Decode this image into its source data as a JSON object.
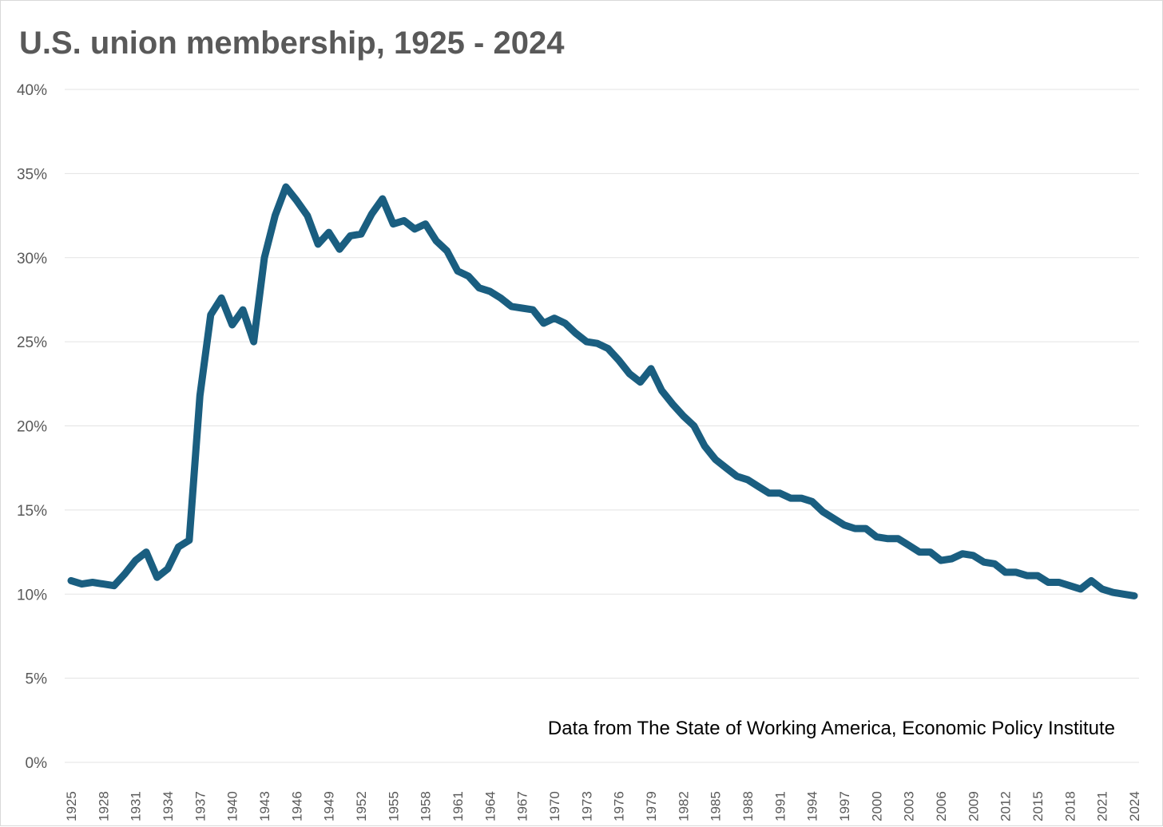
{
  "chart_data": {
    "type": "line",
    "title": "U.S. union membership, 1925 - 2024",
    "xlabel": "",
    "ylabel": "",
    "ylim": [
      0,
      40
    ],
    "ytick_step": 5,
    "ytick_suffix": "%",
    "grid": true,
    "legend": "none",
    "annotation": "Data from The State of Working America, Economic Policy Institute",
    "xtick_labels": [
      "1925",
      "1928",
      "1931",
      "1934",
      "1937",
      "1940",
      "1943",
      "1946",
      "1949",
      "1952",
      "1955",
      "1958",
      "1961",
      "1964",
      "1967",
      "1970",
      "1973",
      "1976",
      "1979",
      "1982",
      "1985",
      "1988",
      "1991",
      "1994",
      "1997",
      "2000",
      "2003",
      "2006",
      "2009",
      "2012",
      "2015",
      "2018",
      "2021",
      "2024"
    ],
    "x_start": 1925,
    "x_end": 2024,
    "colors": {
      "line": "#1a5e80",
      "grid": "#e3e3e3",
      "text": "#595959"
    },
    "series": [
      {
        "name": "Union membership",
        "x": [
          1925,
          1926,
          1927,
          1928,
          1929,
          1930,
          1931,
          1932,
          1933,
          1934,
          1935,
          1936,
          1937,
          1938,
          1939,
          1940,
          1941,
          1942,
          1943,
          1944,
          1945,
          1946,
          1947,
          1948,
          1949,
          1950,
          1951,
          1952,
          1953,
          1954,
          1955,
          1956,
          1957,
          1958,
          1959,
          1960,
          1961,
          1962,
          1963,
          1964,
          1965,
          1966,
          1967,
          1968,
          1969,
          1970,
          1971,
          1972,
          1973,
          1974,
          1975,
          1976,
          1977,
          1978,
          1979,
          1980,
          1981,
          1982,
          1983,
          1984,
          1985,
          1986,
          1987,
          1988,
          1989,
          1990,
          1991,
          1992,
          1993,
          1994,
          1995,
          1996,
          1997,
          1998,
          1999,
          2000,
          2001,
          2002,
          2003,
          2004,
          2005,
          2006,
          2007,
          2008,
          2009,
          2010,
          2011,
          2012,
          2013,
          2014,
          2015,
          2016,
          2017,
          2018,
          2019,
          2020,
          2021,
          2022,
          2023,
          2024
        ],
        "values": [
          10.8,
          10.6,
          10.7,
          10.6,
          10.5,
          11.2,
          12.0,
          12.5,
          11.0,
          11.5,
          12.8,
          13.2,
          21.8,
          26.6,
          27.6,
          26.0,
          26.9,
          25.0,
          30.0,
          32.5,
          34.2,
          33.4,
          32.5,
          30.8,
          31.5,
          30.5,
          31.3,
          31.4,
          32.6,
          33.5,
          32.0,
          32.2,
          31.7,
          32.0,
          31.0,
          30.4,
          29.2,
          28.9,
          28.2,
          28.0,
          27.6,
          27.1,
          27.0,
          26.9,
          26.1,
          26.4,
          26.1,
          25.5,
          25.0,
          24.9,
          24.6,
          23.9,
          23.1,
          22.6,
          23.4,
          22.1,
          21.3,
          20.6,
          20.0,
          18.8,
          18.0,
          17.5,
          17.0,
          16.8,
          16.4,
          16.0,
          16.0,
          15.7,
          15.7,
          15.5,
          14.9,
          14.5,
          14.1,
          13.9,
          13.9,
          13.4,
          13.3,
          13.3,
          12.9,
          12.5,
          12.5,
          12.0,
          12.1,
          12.4,
          12.3,
          11.9,
          11.8,
          11.3,
          11.3,
          11.1,
          11.1,
          10.7,
          10.7,
          10.5,
          10.3,
          10.8,
          10.3,
          10.1,
          10.0,
          9.9
        ]
      }
    ]
  }
}
